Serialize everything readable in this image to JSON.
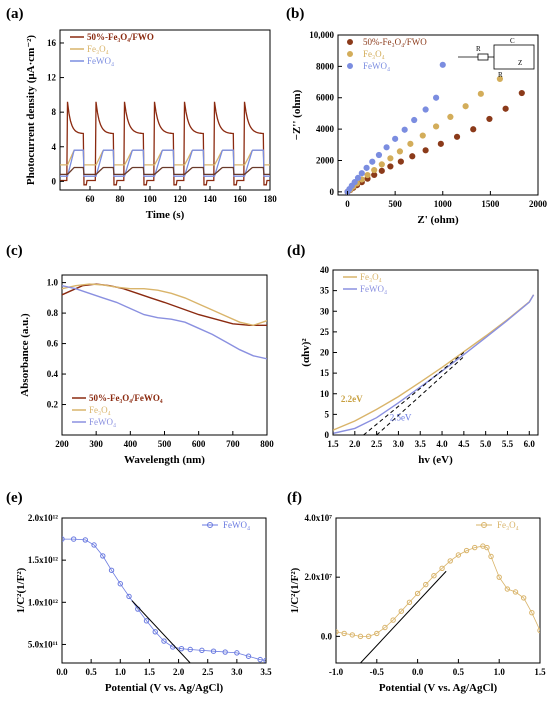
{
  "chart_data": [
    {
      "panel": "(a)",
      "type": "line",
      "xlabel": "Time (s)",
      "ylabel": "Photocurrent density (μA·cm⁻²)",
      "xlim": [
        40,
        180
      ],
      "ylim": [
        -1,
        17.5
      ],
      "xticks": [
        60,
        80,
        100,
        120,
        140,
        160,
        180
      ],
      "yticks": [
        0,
        4,
        8,
        12,
        16
      ],
      "legend": "top-left",
      "series": [
        {
          "name": "50%-Fe3O4/FWO",
          "color": "#8b2a10",
          "base": 5.5,
          "peak": 9.2,
          "off": 0.1,
          "sharp": 1
        },
        {
          "name": "Fe3O4",
          "color": "#d9b46a",
          "base": 3.2,
          "peak": 3.6,
          "off": 1.9,
          "sharp": 0
        },
        {
          "name": "FeWO4",
          "color": "#7b8de0",
          "base": 3.3,
          "peak": 3.6,
          "off": 0.6,
          "sharp": 0
        },
        {
          "name": "",
          "color": "#6a3a2a",
          "base": 1.4,
          "peak": 1.6,
          "off": 0.8,
          "sharp": 0
        }
      ],
      "on_periods": [
        [
          45,
          56
        ],
        [
          64,
          76
        ],
        [
          83,
          96
        ],
        [
          103,
          116
        ],
        [
          123,
          136
        ],
        [
          143,
          156
        ],
        [
          163,
          176
        ]
      ]
    },
    {
      "panel": "(b)",
      "type": "scatter",
      "xlabel": "Z' (ohm)",
      "ylabel": "−Z'' (ohm)",
      "xlim": [
        -100,
        2000
      ],
      "ylim": [
        -200,
        10000
      ],
      "xticks": [
        0,
        500,
        1000,
        1500,
        2000
      ],
      "yticks": [
        0,
        2000,
        4000,
        6000,
        8000,
        10000
      ],
      "xticklabels": [
        "0",
        "500",
        "1000",
        "1500",
        "2000"
      ],
      "yticklabels": [
        "0",
        "2000",
        "4000",
        "6000",
        "8000",
        "10,000"
      ],
      "legend": "top-left",
      "series": [
        {
          "name": "50%-Fe3O4/FWO",
          "color": "#8b3a1a",
          "x": [
            0,
            30,
            60,
            100,
            150,
            210,
            280,
            360,
            450,
            560,
            680,
            820,
            980,
            1150,
            1320,
            1490,
            1660,
            1830
          ],
          "y": [
            0,
            120,
            260,
            430,
            620,
            840,
            1080,
            1340,
            1620,
            1930,
            2270,
            2650,
            3060,
            3510,
            3990,
            4650,
            5300,
            6300
          ]
        },
        {
          "name": "Fe3O4",
          "color": "#d3ad5a",
          "x": [
            0,
            30,
            60,
            100,
            150,
            210,
            280,
            360,
            450,
            550,
            660,
            790,
            930,
            1080,
            1240,
            1400,
            1600
          ],
          "y": [
            0,
            150,
            330,
            540,
            790,
            1070,
            1390,
            1750,
            2140,
            2580,
            3060,
            3590,
            4170,
            4780,
            5460,
            6250,
            7200
          ]
        },
        {
          "name": "FeWO4",
          "color": "#7b8de0",
          "x": [
            0,
            20,
            45,
            75,
            110,
            150,
            200,
            260,
            330,
            410,
            500,
            600,
            700,
            820,
            930,
            1000
          ],
          "y": [
            0,
            180,
            390,
            620,
            890,
            1190,
            1530,
            1920,
            2350,
            2840,
            3380,
            3960,
            4580,
            5250,
            6000,
            8100
          ]
        }
      ],
      "circuit_labels": [
        "R",
        "C",
        "Z",
        "R"
      ]
    },
    {
      "panel": "(c)",
      "type": "line",
      "xlabel": "Wavelength (nm)",
      "ylabel": "Absorbance (a.u.)",
      "xlim": [
        200,
        800
      ],
      "ylim": [
        0,
        1.05
      ],
      "xticks": [
        200,
        300,
        400,
        500,
        600,
        700,
        800
      ],
      "yticks": [
        0.2,
        0.4,
        0.6,
        0.8,
        1.0
      ],
      "legend": "bottom-left",
      "series": [
        {
          "name": "50%-Fe3O4/FeWO4",
          "color": "#8b2a10",
          "x": [
            200,
            230,
            260,
            300,
            340,
            380,
            420,
            460,
            500,
            550,
            600,
            650,
            700,
            750,
            800
          ],
          "y": [
            0.92,
            0.95,
            0.98,
            0.99,
            0.98,
            0.96,
            0.93,
            0.9,
            0.87,
            0.83,
            0.79,
            0.76,
            0.73,
            0.72,
            0.72
          ]
        },
        {
          "name": "Fe3O4",
          "color": "#d9b46a",
          "x": [
            200,
            240,
            280,
            320,
            360,
            400,
            440,
            480,
            520,
            560,
            600,
            640,
            680,
            720,
            760,
            800
          ],
          "y": [
            0.96,
            0.98,
            0.99,
            0.985,
            0.97,
            0.96,
            0.96,
            0.95,
            0.93,
            0.9,
            0.86,
            0.82,
            0.78,
            0.74,
            0.72,
            0.75
          ]
        },
        {
          "name": "FeWO4",
          "color": "#8a90e0",
          "x": [
            200,
            240,
            280,
            320,
            360,
            400,
            440,
            480,
            520,
            560,
            600,
            640,
            680,
            720,
            760,
            800
          ],
          "y": [
            0.98,
            0.96,
            0.93,
            0.9,
            0.87,
            0.83,
            0.79,
            0.77,
            0.76,
            0.74,
            0.7,
            0.66,
            0.61,
            0.56,
            0.52,
            0.5
          ]
        }
      ]
    },
    {
      "panel": "(d)",
      "type": "line",
      "xlabel": "hv (eV)",
      "ylabel": "(αhv)²",
      "xlim": [
        1.5,
        6.2
      ],
      "ylim": [
        0,
        40
      ],
      "xticks": [
        1.5,
        2.0,
        2.5,
        3.0,
        3.5,
        4.0,
        4.5,
        5.0,
        5.5,
        6.0
      ],
      "yticks": [
        0,
        5,
        10,
        15,
        20,
        25,
        30,
        35,
        40
      ],
      "legend": "top-left",
      "annotations": [
        "2.2eV",
        "2.5eV"
      ],
      "series": [
        {
          "name": "Fe3O4",
          "color": "#d9b46a",
          "x": [
            1.5,
            2.0,
            2.5,
            3.0,
            3.5,
            4.0,
            4.5,
            5.0,
            5.5,
            6.0,
            6.1
          ],
          "y": [
            1.2,
            3.4,
            6.2,
            9.3,
            12.8,
            16.4,
            20.2,
            24.0,
            28.0,
            32.3,
            34.0
          ]
        },
        {
          "name": "FeWO4",
          "color": "#8a90e0",
          "x": [
            1.5,
            2.0,
            2.5,
            3.0,
            3.5,
            4.0,
            4.5,
            5.0,
            5.5,
            6.0,
            6.1
          ],
          "y": [
            0.4,
            1.6,
            4.2,
            7.8,
            11.6,
            15.5,
            19.5,
            23.6,
            27.8,
            32.2,
            34.0
          ]
        }
      ]
    },
    {
      "panel": "(e)",
      "type": "scatter",
      "xlabel": "Potential (V vs. Ag/AgCl)",
      "ylabel": "1/C²(1/F²)",
      "xlim": [
        0,
        3.5
      ],
      "ylim": [
        280000000000.0,
        2000000000000.0
      ],
      "xticks": [
        0.0,
        0.5,
        1.0,
        1.5,
        2.0,
        2.5,
        3.0,
        3.5
      ],
      "yticks": [
        500000000000.0,
        1000000000000.0,
        1500000000000.0,
        2000000000000.0
      ],
      "yticklabels": [
        "5.0x10¹¹",
        "1.0x10¹²",
        "1.5x10¹²",
        "2.0x10¹²"
      ],
      "legend": "top-right",
      "series": [
        {
          "name": "FeWO4",
          "color": "#6a7ae0",
          "x": [
            0.0,
            0.2,
            0.4,
            0.55,
            0.7,
            0.85,
            1.0,
            1.15,
            1.3,
            1.45,
            1.6,
            1.75,
            1.9,
            2.05,
            2.2,
            2.4,
            2.6,
            2.8,
            3.0,
            3.2,
            3.4,
            3.5
          ],
          "y": [
            1750000000000.0,
            1750000000000.0,
            1740000000000.0,
            1680000000000.0,
            1550000000000.0,
            1380000000000.0,
            1220000000000.0,
            1070000000000.0,
            920000000000.0,
            780000000000.0,
            650000000000.0,
            540000000000.0,
            470000000000.0,
            450000000000.0,
            440000000000.0,
            430000000000.0,
            420000000000.0,
            410000000000.0,
            400000000000.0,
            360000000000.0,
            320000000000.0,
            310000000000.0
          ]
        }
      ],
      "fit_line": {
        "x": [
          1.2,
          2.2
        ],
        "y": [
          1020000000000.0,
          280000000000.0
        ]
      }
    },
    {
      "panel": "(f)",
      "type": "scatter",
      "xlabel": "Potential (V vs. Ag/AgCl)",
      "ylabel": "1/C²(1/F²)",
      "xlim": [
        -1.0,
        1.5
      ],
      "ylim": [
        -9000000.0,
        40000000.0
      ],
      "xticks": [
        -1.0,
        -0.5,
        0.0,
        0.5,
        1.0,
        1.5
      ],
      "yticks": [
        0,
        20000000.0,
        40000000.0
      ],
      "yticklabels": [
        "0.0",
        "2.0x10⁷",
        "4.0x10⁷"
      ],
      "legend": "top-right",
      "series": [
        {
          "name": "Fe3O4",
          "color": "#d9b46a",
          "x": [
            -1.0,
            -0.9,
            -0.8,
            -0.7,
            -0.6,
            -0.5,
            -0.4,
            -0.3,
            -0.2,
            -0.1,
            0.0,
            0.1,
            0.2,
            0.3,
            0.4,
            0.5,
            0.6,
            0.7,
            0.8,
            0.85,
            0.9,
            1.0,
            1.1,
            1.2,
            1.3,
            1.4,
            1.5
          ],
          "y": [
            1500000.0,
            1000000.0,
            500000.0,
            0.0,
            0.0,
            1000000.0,
            3000000.0,
            5500000.0,
            8500000.0,
            11500000.0,
            14500000.0,
            17500000.0,
            20500000.0,
            23000000.0,
            25500000.0,
            27500000.0,
            29000000.0,
            30000000.0,
            30500000.0,
            30000000.0,
            27000000.0,
            20000000.0,
            16000000.0,
            15000000.0,
            13000000.0,
            8000000.0,
            2000000.0
          ]
        }
      ],
      "fit_line": {
        "x": [
          -0.7,
          0.35
        ],
        "y": [
          -9000000.0,
          22000000.0
        ]
      }
    }
  ]
}
